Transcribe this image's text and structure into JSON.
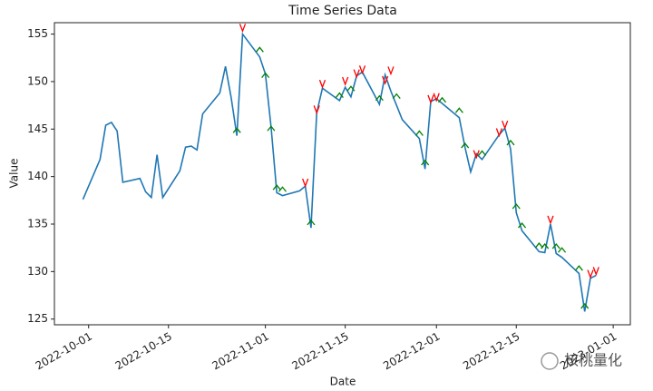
{
  "chart_data": {
    "type": "line",
    "title": "Time Series Data",
    "x_label": "Date",
    "y_label": "Value",
    "x": [
      "2022-09-30",
      "2022-10-03",
      "2022-10-04",
      "2022-10-05",
      "2022-10-06",
      "2022-10-07",
      "2022-10-10",
      "2022-10-11",
      "2022-10-12",
      "2022-10-13",
      "2022-10-14",
      "2022-10-17",
      "2022-10-18",
      "2022-10-19",
      "2022-10-20",
      "2022-10-21",
      "2022-10-24",
      "2022-10-25",
      "2022-10-26",
      "2022-10-27",
      "2022-10-28",
      "2022-10-31",
      "2022-11-01",
      "2022-11-02",
      "2022-11-03",
      "2022-11-04",
      "2022-11-07",
      "2022-11-08",
      "2022-11-09",
      "2022-11-10",
      "2022-11-11",
      "2022-11-14",
      "2022-11-15",
      "2022-11-16",
      "2022-11-17",
      "2022-11-18",
      "2022-11-21",
      "2022-11-22",
      "2022-11-23",
      "2022-11-24",
      "2022-11-25",
      "2022-11-28",
      "2022-11-29",
      "2022-11-30",
      "2022-12-01",
      "2022-12-02",
      "2022-12-05",
      "2022-12-06",
      "2022-12-07",
      "2022-12-08",
      "2022-12-09",
      "2022-12-12",
      "2022-12-13",
      "2022-12-14",
      "2022-12-15",
      "2022-12-16",
      "2022-12-19",
      "2022-12-20",
      "2022-12-21",
      "2022-12-22",
      "2022-12-23",
      "2022-12-26",
      "2022-12-27",
      "2022-12-28",
      "2022-12-29"
    ],
    "series": [
      {
        "color": "#1f77b4",
        "values": [
          137.6,
          141.8,
          145.4,
          145.7,
          144.8,
          139.4,
          139.8,
          138.4,
          137.8,
          142.3,
          137.8,
          140.6,
          143.1,
          143.2,
          142.8,
          146.6,
          148.8,
          151.6,
          148.3,
          144.3,
          155.0,
          152.6,
          150.8,
          145.2,
          138.3,
          138.0,
          138.5,
          139.0,
          134.6,
          146.7,
          149.3,
          148.0,
          149.4,
          148.4,
          150.6,
          151.0,
          147.6,
          150.7,
          149.0,
          147.5,
          146.0,
          144.0,
          140.8,
          147.9,
          148.2,
          147.7,
          146.2,
          143.1,
          140.5,
          142.4,
          141.8,
          144.4,
          145.1,
          142.9,
          136.2,
          134.3,
          132.1,
          132.0,
          135.0,
          131.9,
          131.5,
          129.8,
          125.8,
          129.3,
          129.6
        ]
      },
      {
        "color": "#ff0000",
        "marker": "v",
        "x": [
          "2022-10-28",
          "2022-11-08",
          "2022-11-10",
          "2022-11-11",
          "2022-11-15",
          "2022-11-17",
          "2022-11-18",
          "2022-11-22",
          "2022-11-23",
          "2022-11-30",
          "2022-12-01",
          "2022-12-08",
          "2022-12-12",
          "2022-12-13",
          "2022-12-21",
          "2022-12-28",
          "2022-12-29"
        ],
        "values": [
          155.5,
          139.2,
          146.9,
          149.6,
          149.9,
          150.7,
          151.1,
          150.0,
          151.0,
          148.0,
          148.2,
          142.2,
          144.5,
          145.3,
          135.3,
          129.6,
          129.9
        ]
      },
      {
        "color": "#008000",
        "marker": "^",
        "x": [
          "2022-10-27",
          "2022-10-31",
          "2022-11-01",
          "2022-11-02",
          "2022-11-03",
          "2022-11-04",
          "2022-11-09",
          "2022-11-14",
          "2022-11-16",
          "2022-11-21",
          "2022-11-24",
          "2022-11-28",
          "2022-11-29",
          "2022-12-02",
          "2022-12-05",
          "2022-12-06",
          "2022-12-09",
          "2022-12-14",
          "2022-12-15",
          "2022-12-16",
          "2022-12-19",
          "2022-12-20",
          "2022-12-22",
          "2022-12-23",
          "2022-12-26",
          "2022-12-27"
        ],
        "values": [
          144.9,
          153.4,
          150.7,
          145.1,
          138.9,
          138.7,
          135.2,
          148.6,
          149.3,
          148.3,
          148.5,
          144.6,
          141.5,
          148.1,
          147.0,
          143.3,
          142.5,
          143.6,
          136.9,
          134.9,
          132.8,
          132.7,
          132.7,
          132.3,
          130.4,
          126.4
        ]
      }
    ],
    "xlim": [
      "2022-09-25",
      "2023-01-04"
    ],
    "xticks": [
      "2022-10-01",
      "2022-10-15",
      "2022-11-01",
      "2022-11-15",
      "2022-12-01",
      "2022-12-15",
      "2023-01-01"
    ],
    "ylim": [
      124.4,
      156.2
    ],
    "yticks": [
      125,
      130,
      135,
      140,
      145,
      150,
      155
    ],
    "watermark": "核桃量化"
  }
}
